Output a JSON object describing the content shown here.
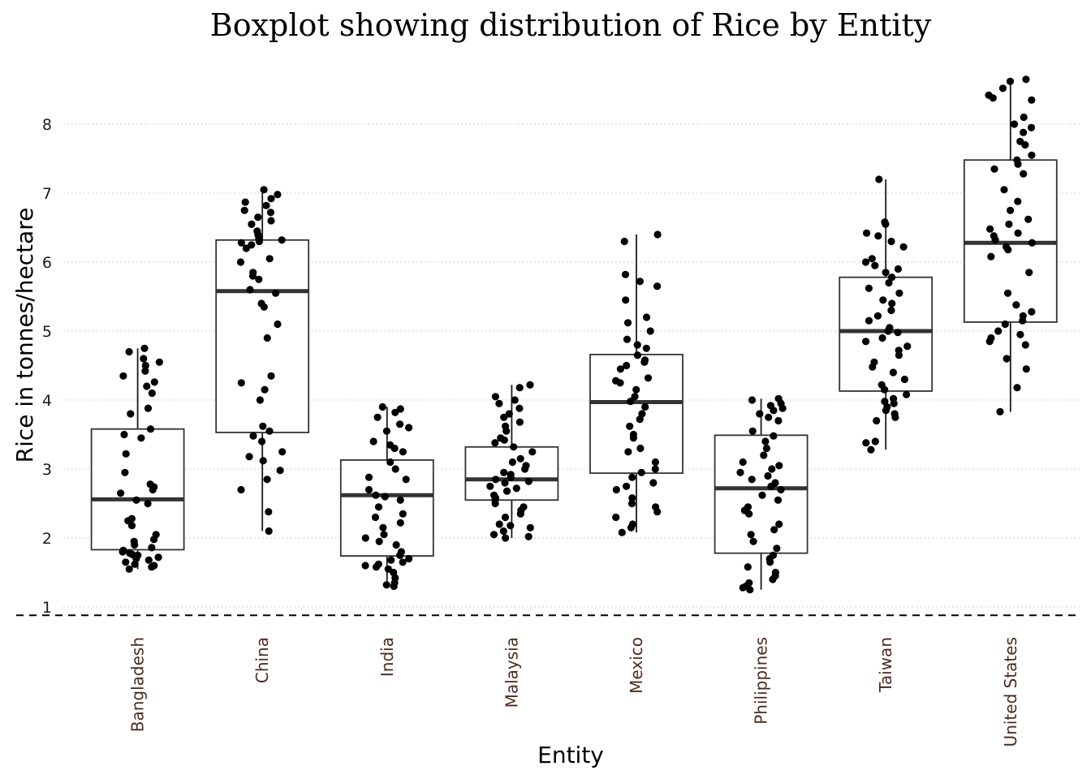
{
  "chart_data": {
    "type": "boxplot",
    "title": "Boxplot showing distribution of Rice by Entity",
    "xlabel": "Entity",
    "ylabel": "Rice in tonnes/hectare",
    "yticks": [
      1,
      2,
      3,
      4,
      5,
      6,
      7,
      8
    ],
    "ylim": [
      0.85,
      8.75
    ],
    "grid": "horizontal dotted",
    "reference_line": 0.88,
    "categories": [
      "Bangladesh",
      "China",
      "India",
      "Malaysia",
      "Mexico",
      "Philippines",
      "Taiwan",
      "United States"
    ],
    "boxes": [
      {
        "name": "Bangladesh",
        "min": 1.55,
        "q1": 1.83,
        "median": 2.56,
        "q3": 3.58,
        "max": 4.75
      },
      {
        "name": "China",
        "min": 2.1,
        "q1": 3.53,
        "median": 5.58,
        "q3": 6.32,
        "max": 7.05
      },
      {
        "name": "India",
        "min": 1.3,
        "q1": 1.74,
        "median": 2.62,
        "q3": 3.13,
        "max": 3.9
      },
      {
        "name": "Malaysia",
        "min": 2.0,
        "q1": 2.55,
        "median": 2.85,
        "q3": 3.32,
        "max": 4.22
      },
      {
        "name": "Mexico",
        "min": 2.08,
        "q1": 2.94,
        "median": 3.97,
        "q3": 4.66,
        "max": 6.4
      },
      {
        "name": "Philippines",
        "min": 1.25,
        "q1": 1.78,
        "median": 2.72,
        "q3": 3.49,
        "max": 4.02
      },
      {
        "name": "Taiwan",
        "min": 3.28,
        "q1": 4.13,
        "median": 5.0,
        "q3": 5.78,
        "max": 7.2
      },
      {
        "name": "United States",
        "min": 3.83,
        "q1": 5.13,
        "median": 6.28,
        "q3": 7.48,
        "max": 8.65
      }
    ],
    "points": [
      [
        4.75,
        4.7,
        4.6,
        4.55,
        4.5,
        4.42,
        4.35,
        4.26,
        4.2,
        4.1,
        3.88,
        3.8,
        3.58,
        3.5,
        3.45,
        3.22,
        2.95,
        2.78,
        2.74,
        2.7,
        2.65,
        2.55,
        2.5,
        2.28,
        2.25,
        2.18,
        2.05,
        1.98,
        1.95,
        1.9,
        1.86,
        1.82,
        1.8,
        1.78,
        1.76,
        1.75,
        1.72,
        1.7,
        1.68,
        1.65,
        1.62,
        1.6,
        1.58,
        1.55
      ],
      [
        7.05,
        6.98,
        6.92,
        6.87,
        6.82,
        6.75,
        6.72,
        6.65,
        6.6,
        6.55,
        6.45,
        6.4,
        6.35,
        6.32,
        6.3,
        6.28,
        6.25,
        6.2,
        6.05,
        6.0,
        5.85,
        5.8,
        5.75,
        5.6,
        5.55,
        5.4,
        5.35,
        5.1,
        4.9,
        4.35,
        4.25,
        4.15,
        4.0,
        3.62,
        3.55,
        3.48,
        3.4,
        3.25,
        3.18,
        3.12,
        2.98,
        2.85,
        2.7,
        2.38,
        2.1
      ],
      [
        3.9,
        3.87,
        3.82,
        3.75,
        3.65,
        3.6,
        3.55,
        3.4,
        3.35,
        3.3,
        3.25,
        3.1,
        3.0,
        2.88,
        2.85,
        2.7,
        2.62,
        2.6,
        2.55,
        2.45,
        2.35,
        2.3,
        2.22,
        2.15,
        2.05,
        2.0,
        1.95,
        1.9,
        1.8,
        1.75,
        1.7,
        1.68,
        1.65,
        1.62,
        1.6,
        1.58,
        1.55,
        1.5,
        1.42,
        1.35,
        1.32,
        1.3
      ],
      [
        4.22,
        4.18,
        4.05,
        4.0,
        3.95,
        3.88,
        3.8,
        3.75,
        3.68,
        3.62,
        3.55,
        3.45,
        3.42,
        3.38,
        3.32,
        3.25,
        3.15,
        3.1,
        3.05,
        3.0,
        2.95,
        2.92,
        2.88,
        2.85,
        2.82,
        2.8,
        2.75,
        2.72,
        2.68,
        2.62,
        2.58,
        2.55,
        2.5,
        2.45,
        2.4,
        2.35,
        2.3,
        2.2,
        2.18,
        2.15,
        2.1,
        2.05,
        2.02,
        2.0
      ],
      [
        6.4,
        6.3,
        5.82,
        5.72,
        5.65,
        5.45,
        5.2,
        5.12,
        5.0,
        4.88,
        4.8,
        4.75,
        4.65,
        4.58,
        4.55,
        4.5,
        4.45,
        4.32,
        4.28,
        4.25,
        4.15,
        4.05,
        3.98,
        3.9,
        3.8,
        3.72,
        3.62,
        3.5,
        3.45,
        3.3,
        3.25,
        3.1,
        3.0,
        2.95,
        2.88,
        2.8,
        2.75,
        2.7,
        2.58,
        2.5,
        2.45,
        2.38,
        2.3,
        2.2,
        2.15,
        2.08
      ],
      [
        4.02,
        4.0,
        3.95,
        3.92,
        3.88,
        3.85,
        3.8,
        3.75,
        3.7,
        3.55,
        3.48,
        3.4,
        3.3,
        3.2,
        3.1,
        3.05,
        3.0,
        2.95,
        2.9,
        2.85,
        2.8,
        2.75,
        2.7,
        2.62,
        2.55,
        2.45,
        2.4,
        2.35,
        2.2,
        2.12,
        2.05,
        1.95,
        1.85,
        1.75,
        1.7,
        1.65,
        1.58,
        1.5,
        1.45,
        1.4,
        1.35,
        1.3,
        1.28,
        1.25
      ],
      [
        7.2,
        6.58,
        6.55,
        6.42,
        6.38,
        6.3,
        6.22,
        6.05,
        6.0,
        5.95,
        5.9,
        5.85,
        5.78,
        5.7,
        5.62,
        5.55,
        5.45,
        5.4,
        5.3,
        5.22,
        5.15,
        5.05,
        5.0,
        4.98,
        4.9,
        4.85,
        4.78,
        4.72,
        4.65,
        4.55,
        4.48,
        4.4,
        4.3,
        4.22,
        4.15,
        4.08,
        4.02,
        3.98,
        3.95,
        3.9,
        3.85,
        3.8,
        3.75,
        3.7,
        3.4,
        3.38,
        3.28
      ],
      [
        8.65,
        8.62,
        8.52,
        8.42,
        8.38,
        8.35,
        8.1,
        8.0,
        7.95,
        7.88,
        7.75,
        7.7,
        7.55,
        7.48,
        7.42,
        7.35,
        7.28,
        7.05,
        6.88,
        6.75,
        6.62,
        6.55,
        6.48,
        6.42,
        6.38,
        6.32,
        6.28,
        6.22,
        6.18,
        6.08,
        5.85,
        5.55,
        5.38,
        5.28,
        5.22,
        5.15,
        5.1,
        5.0,
        4.95,
        4.9,
        4.85,
        4.8,
        4.6,
        4.45,
        4.18,
        3.83
      ]
    ]
  }
}
